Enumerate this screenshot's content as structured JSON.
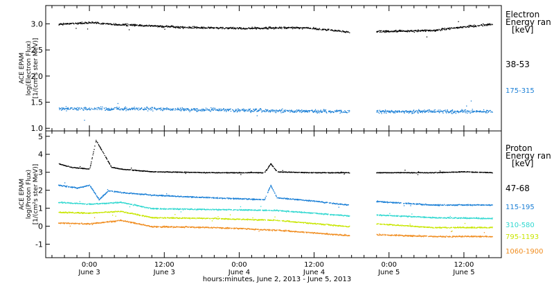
{
  "chart_data": [
    {
      "type": "scatter",
      "panel": "electron",
      "ylabel_lines": [
        "ACE EPAM",
        "log(Electron Flux)",
        "[1/(cm²s ster MeV)]"
      ],
      "ylim": [
        0.95,
        3.35
      ],
      "yticks": [
        1.0,
        1.5,
        2.0,
        2.5,
        3.0
      ],
      "ytick_labels": [
        "1.0",
        "1.5",
        "2.0",
        "2.5",
        "3.0"
      ],
      "legend_title": [
        "Electron",
        "Energy ran",
        "[keV]"
      ],
      "series": [
        {
          "name": "38-53",
          "color": "#000000",
          "noise": 0.03,
          "x": [
            -5,
            0,
            5,
            10,
            15,
            20,
            25,
            30,
            35,
            41.5,
            46,
            50,
            55,
            60,
            64.5
          ],
          "y": [
            3.0,
            3.03,
            2.99,
            2.97,
            2.94,
            2.93,
            2.92,
            2.93,
            2.93,
            2.85,
            2.86,
            2.87,
            2.88,
            2.95,
            3.0
          ]
        },
        {
          "name": "175-315",
          "color": "#1a7fd6",
          "noise": 0.05,
          "x": [
            -5,
            10,
            20,
            30,
            41.5,
            46,
            55,
            64.5
          ],
          "y": [
            1.38,
            1.38,
            1.36,
            1.34,
            1.33,
            1.33,
            1.33,
            1.33
          ]
        }
      ]
    },
    {
      "type": "scatter",
      "panel": "proton",
      "ylabel_lines": [
        "ACE EPAM",
        "log(Proton Flux)",
        "[1/(cm²s ster MeV)]"
      ],
      "ylim": [
        -1.75,
        5.3
      ],
      "yticks": [
        -1,
        0,
        1,
        2,
        3,
        4,
        5
      ],
      "ytick_labels": [
        "-1",
        "0",
        "1",
        "2",
        "3",
        "4",
        "5"
      ],
      "legend_title": [
        "Proton",
        "Energy ran",
        "[keV]"
      ],
      "series": [
        {
          "name": "47-68",
          "color": "#000000",
          "noise": 0.03,
          "x": [
            -5,
            -3,
            0,
            1,
            2.5,
            3.5,
            5,
            10,
            20,
            28,
            29,
            30,
            35,
            41.5,
            46,
            55,
            60,
            64.5
          ],
          "y": [
            3.5,
            3.3,
            3.2,
            4.8,
            3.9,
            3.3,
            3.2,
            3.05,
            3.0,
            3.0,
            3.5,
            3.05,
            3.0,
            3.0,
            3.0,
            3.0,
            3.05,
            3.0
          ]
        },
        {
          "name": "115-195",
          "color": "#1a7fd6",
          "noise": 0.05,
          "x": [
            -5,
            -2,
            0,
            1.5,
            3,
            5,
            10,
            20,
            28,
            29,
            30,
            35,
            41.5,
            46,
            55,
            64.5
          ],
          "y": [
            2.3,
            2.15,
            2.3,
            1.5,
            2.0,
            1.9,
            1.75,
            1.6,
            1.5,
            2.3,
            1.6,
            1.45,
            1.2,
            1.4,
            1.2,
            1.2
          ]
        },
        {
          "name": "310-580",
          "color": "#30d8d0",
          "noise": 0.05,
          "x": [
            -5,
            0,
            5,
            10,
            20,
            30,
            41.5,
            46,
            55,
            64.5
          ],
          "y": [
            1.35,
            1.25,
            1.35,
            1.0,
            0.95,
            0.9,
            0.6,
            0.65,
            0.5,
            0.45
          ]
        },
        {
          "name": "795-1193",
          "color": "#c8e600",
          "noise": 0.05,
          "x": [
            -5,
            0,
            5,
            10,
            20,
            30,
            41.5,
            46,
            55,
            64.5
          ],
          "y": [
            0.8,
            0.75,
            0.85,
            0.5,
            0.45,
            0.35,
            0.0,
            0.15,
            -0.05,
            -0.05
          ]
        },
        {
          "name": "1060-1900",
          "color": "#f08c1e",
          "noise": 0.06,
          "x": [
            -5,
            0,
            5,
            10,
            20,
            30,
            41.5,
            46,
            55,
            64.5
          ],
          "y": [
            0.2,
            0.15,
            0.35,
            0.0,
            -0.05,
            -0.2,
            -0.5,
            -0.45,
            -0.55,
            -0.55
          ]
        }
      ]
    }
  ],
  "x_axis": {
    "xlim": [
      -7,
      66
    ],
    "data_gap": [
      41.6,
      45.9
    ],
    "ticks": [
      {
        "h": 0,
        "time": "0:00",
        "date": "June 3"
      },
      {
        "h": 12,
        "time": "12:00",
        "date": "June 3"
      },
      {
        "h": 24,
        "time": "0:00",
        "date": "June 4"
      },
      {
        "h": 36,
        "time": "12:00",
        "date": "June 4"
      },
      {
        "h": 48,
        "time": "0:00",
        "date": "June 5"
      },
      {
        "h": 60,
        "time": "12:00",
        "date": "June 5"
      }
    ],
    "minor_step_hours": 2,
    "label": "hours:minutes, June  2, 2013 - June  5, 2013"
  }
}
